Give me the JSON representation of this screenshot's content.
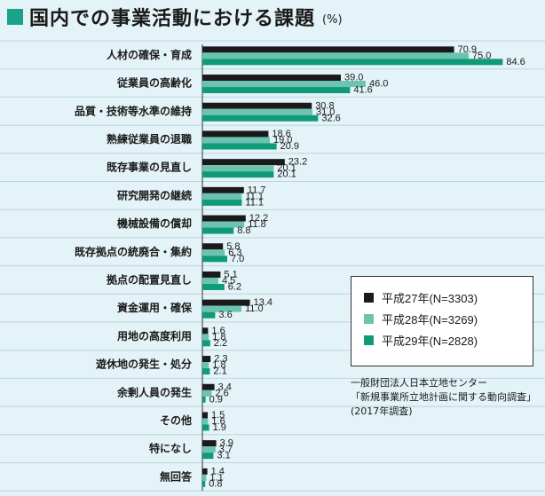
{
  "title": "国内での事業活動における課題",
  "unit": "(%)",
  "colors": {
    "s1": "#1a1a1a",
    "s2": "#6cc4b0",
    "s3": "#0f9a78",
    "grid": "#b8d6dc"
  },
  "legend": [
    {
      "label": "平成27年(N=3303)",
      "color": "#1a1a1a"
    },
    {
      "label": "平成28年(N=3269)",
      "color": "#6cc4b0"
    },
    {
      "label": "平成29年(N=2828)",
      "color": "#0f9a78"
    }
  ],
  "source": [
    "一般財団法人日本立地センター",
    "「新規事業所立地計画に関する動向調査」",
    "(2017年調査)"
  ],
  "chart_data": {
    "type": "bar",
    "orientation": "horizontal",
    "title": "国内での事業活動における課題",
    "unit": "(%)",
    "categories": [
      "人材の確保・育成",
      "従業員の高齢化",
      "品質・技術等水準の維持",
      "熟練従業員の退職",
      "既存事業の見直し",
      "研究開発の継続",
      "機械設備の償却",
      "既存拠点の統廃合・集約",
      "拠点の配置見直し",
      "資金運用・確保",
      "用地の高度利用",
      "遊休地の発生・処分",
      "余剰人員の発生",
      "その他",
      "特になし",
      "無回答"
    ],
    "series": [
      {
        "name": "平成27年(N=3303)",
        "values": [
          70.9,
          39.0,
          30.8,
          18.6,
          23.2,
          11.7,
          12.2,
          5.8,
          5.1,
          13.4,
          1.6,
          2.3,
          3.4,
          1.5,
          3.9,
          1.4
        ]
      },
      {
        "name": "平成28年(N=3269)",
        "values": [
          75.0,
          46.0,
          31.0,
          19.0,
          20.1,
          11.1,
          11.8,
          6.3,
          4.5,
          11.0,
          1.8,
          1.8,
          2.6,
          1.6,
          3.7,
          1.1
        ]
      },
      {
        "name": "平成29年(N=2828)",
        "values": [
          84.6,
          41.6,
          32.6,
          20.9,
          20.1,
          11.1,
          8.8,
          7.0,
          6.2,
          3.6,
          2.2,
          2.1,
          0.9,
          1.9,
          3.1,
          0.8
        ]
      }
    ],
    "value_labels": [
      [
        "70.9",
        "39.0",
        "30.8",
        "18.6",
        "23.2",
        "11.7",
        "12.2",
        "5.8",
        "5.1",
        "13.4",
        "1.6",
        "2.3",
        "3.4",
        "1.5",
        "3.9",
        "1.4"
      ],
      [
        "75.0",
        "46.0",
        "31.0",
        "19.0",
        "20.1",
        "11.1",
        "11.8",
        "6.3",
        "4.5",
        "11.0",
        "1.8",
        "1.8",
        "2.6",
        "1.6",
        "3.7",
        "1.1"
      ],
      [
        "84.6",
        "41.6",
        "32.6",
        "20.9",
        "20.1",
        "11.1",
        "8.8",
        "7.0",
        "6.2",
        "3.6",
        "2.2",
        "2.1",
        "0.9",
        "1.9",
        "3.1",
        "0.8"
      ]
    ],
    "xlim": [
      0,
      100
    ],
    "grid": true,
    "legend_position": "right"
  }
}
